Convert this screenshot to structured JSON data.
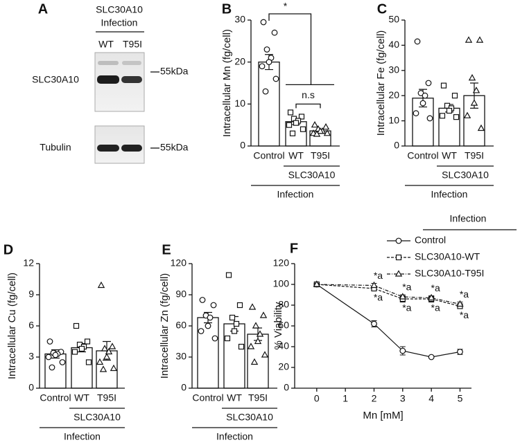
{
  "blot": {
    "letter": "A",
    "header": [
      "SLC30A10",
      "Infection"
    ],
    "lanes": [
      "WT",
      "T95I"
    ],
    "rows": [
      {
        "label": "SLC30A10",
        "marker": "55kDa"
      },
      {
        "label": "Tubulin",
        "marker": "55kDa"
      }
    ]
  },
  "chart_data": [
    {
      "type": "bar",
      "letter": "B",
      "ylabel": "Intracellular Mn (fg/cell)",
      "categories": [
        "Control",
        "WT",
        "T95I"
      ],
      "values": [
        20,
        5.8,
        3.6
      ],
      "errors": [
        1.8,
        0.7,
        0.4
      ],
      "color": "#ffffff",
      "points": [
        [
          29.5,
          27,
          23,
          21,
          20,
          19,
          16,
          13
        ],
        [
          8,
          7,
          6.5,
          6,
          5.5,
          5,
          4,
          3
        ],
        [
          5,
          4.5,
          4,
          3.5,
          3.5,
          3,
          3,
          2.8
        ]
      ],
      "markers": [
        "circle",
        "square",
        "triangle"
      ],
      "groups": [
        "SLC30A10",
        "Infection"
      ],
      "annotations": [
        "*",
        "n.s"
      ],
      "ylim": [
        0,
        30
      ],
      "yticks": [
        0,
        10,
        20,
        30
      ]
    },
    {
      "type": "bar",
      "letter": "C",
      "ylabel": "Intracellular Fe (fg/cell)",
      "categories": [
        "Control",
        "WT",
        "T95I"
      ],
      "values": [
        19,
        15,
        20
      ],
      "errors": [
        3.5,
        1.5,
        5
      ],
      "color": "#ffffff",
      "points": [
        [
          41.5,
          25,
          21,
          20,
          17,
          13,
          11
        ],
        [
          24,
          20,
          16,
          15,
          14,
          12,
          11.5
        ],
        [
          42,
          42,
          27,
          22,
          17,
          12,
          7
        ]
      ],
      "markers": [
        "circle",
        "square",
        "triangle"
      ],
      "groups": [
        "SLC30A10",
        "Infection"
      ],
      "ylim": [
        0,
        50
      ],
      "yticks": [
        0,
        10,
        20,
        30,
        40,
        50
      ]
    },
    {
      "type": "bar",
      "letter": "D",
      "ylabel": "Intracellular Cu (fg/cell)",
      "categories": [
        "Control",
        "WT",
        "T95I"
      ],
      "values": [
        3.3,
        3.9,
        3.6
      ],
      "errors": [
        0.4,
        0.4,
        0.9
      ],
      "color": "#ffffff",
      "points": [
        [
          4.5,
          3.5,
          3.4,
          3.3,
          3.2,
          3,
          2.5,
          2
        ],
        [
          6,
          4.5,
          4.2,
          4,
          3.8,
          3.5,
          2.5
        ],
        [
          9.9,
          4,
          3.8,
          3.5,
          3,
          2.5,
          1.9,
          1.8
        ]
      ],
      "markers": [
        "circle",
        "square",
        "triangle"
      ],
      "groups": [
        "SLC30A10",
        "Infection"
      ],
      "ylim": [
        0,
        12
      ],
      "yticks": [
        0,
        3,
        6,
        9,
        12
      ]
    },
    {
      "type": "bar",
      "letter": "E",
      "ylabel": "Intracellular Zn (fg/cell)",
      "categories": [
        "Control",
        "WT",
        "T95I"
      ],
      "values": [
        68,
        62,
        52
      ],
      "errors": [
        5,
        7,
        6
      ],
      "color": "#ffffff",
      "points": [
        [
          85,
          80,
          70,
          68,
          60,
          55,
          48
        ],
        [
          109,
          80,
          68,
          62,
          55,
          48,
          40
        ],
        [
          78,
          70,
          60,
          52,
          45,
          40,
          32,
          25
        ]
      ],
      "markers": [
        "circle",
        "square",
        "triangle"
      ],
      "groups": [
        "SLC30A10",
        "Infection"
      ],
      "ylim": [
        0,
        120
      ],
      "yticks": [
        0,
        30,
        60,
        90,
        120
      ]
    },
    {
      "type": "line",
      "letter": "F",
      "xlabel": "Mn [mM]",
      "ylabel": "% Viability",
      "legend_title": "Infection",
      "x": [
        0,
        2,
        3,
        4,
        5
      ],
      "xlim": [
        -0.77,
        5.4
      ],
      "xticks": [
        0,
        1,
        2,
        3,
        4,
        5
      ],
      "ylim": [
        0,
        120
      ],
      "yticks": [
        0,
        20,
        40,
        60,
        80,
        100,
        120
      ],
      "series": [
        {
          "name": "Control",
          "color": "#111111",
          "marker": "circle",
          "line_style": "solid",
          "values": [
            100,
            62,
            36,
            30,
            35
          ],
          "errors": [
            1,
            3,
            4,
            1,
            2.5
          ]
        },
        {
          "name": "SLC30A10-WT",
          "color": "#111111",
          "marker": "square",
          "line_style": "dashed",
          "values": [
            100,
            96,
            86,
            86,
            79
          ],
          "errors": [
            1,
            2,
            3,
            3,
            2
          ],
          "labels": [
            null,
            "*a",
            "*a",
            "*a",
            "*a"
          ]
        },
        {
          "name": "SLC30A10-T95I",
          "color": "#111111",
          "marker": "triangle",
          "line_style": "dashdot",
          "values": [
            100,
            99,
            88,
            87,
            81
          ],
          "errors": [
            1,
            2,
            2,
            2,
            2
          ],
          "labels": [
            null,
            "*a",
            "*a",
            "*a",
            "*a"
          ]
        }
      ]
    }
  ]
}
